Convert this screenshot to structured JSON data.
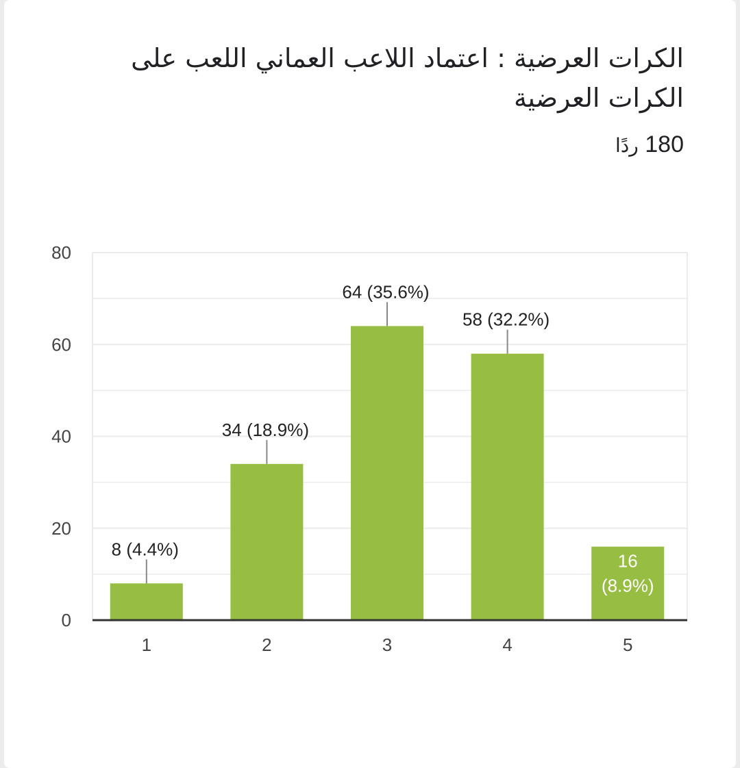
{
  "header": {
    "title": "الكرات العرضية : اعتماد اللاعب العماني اللعب على الكرات العرضية",
    "response_count": "180",
    "response_word": "ردًا"
  },
  "chart_data": {
    "type": "bar",
    "title": "",
    "xlabel": "",
    "ylabel": "",
    "categories": [
      "1",
      "2",
      "3",
      "4",
      "5"
    ],
    "values": [
      8,
      34,
      64,
      58,
      16
    ],
    "labels": [
      "8 (4.4%)",
      "34 (18.9%)",
      "64 (35.6%)",
      "58 (32.2%)",
      "16 (8.9%)"
    ],
    "ylim": [
      0,
      80
    ],
    "yticks": [
      0,
      20,
      40,
      60,
      80
    ],
    "grid": true,
    "bar_color": "#97be43",
    "grid_color": "#ebebeb",
    "axis_color": "#333333"
  }
}
